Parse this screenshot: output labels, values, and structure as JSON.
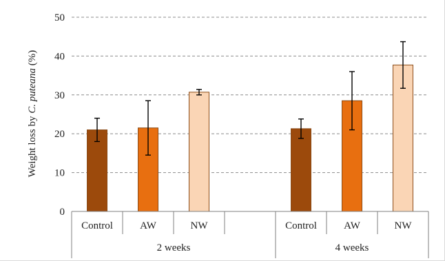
{
  "chart_data": {
    "type": "bar",
    "groups": [
      "2 weeks",
      "4 weeks"
    ],
    "categories": [
      "Control",
      "AW",
      "NW"
    ],
    "series": [
      {
        "group": "2 weeks",
        "category": "Control",
        "value": 21.0,
        "error": 3.0,
        "color": "#9c4a0c"
      },
      {
        "group": "2 weeks",
        "category": "AW",
        "value": 21.5,
        "error": 7.0,
        "color": "#e86f10"
      },
      {
        "group": "2 weeks",
        "category": "NW",
        "value": 30.7,
        "error": 0.7,
        "color": "#fad5b5"
      },
      {
        "group": "4 weeks",
        "category": "Control",
        "value": 21.3,
        "error": 2.5,
        "color": "#9c4a0c"
      },
      {
        "group": "4 weeks",
        "category": "AW",
        "value": 28.5,
        "error": 7.5,
        "color": "#e86f10"
      },
      {
        "group": "4 weeks",
        "category": "NW",
        "value": 37.7,
        "error": 6.0,
        "color": "#fad5b5"
      }
    ],
    "ylabel_prefix": "Weight loss by ",
    "ylabel_species": "C. puteana",
    "ylabel_suffix": " (%)",
    "ylim": [
      0,
      50
    ],
    "yticks": [
      0,
      10,
      20,
      30,
      40,
      50
    ],
    "grid": true,
    "bar_outline": "#8a4a16"
  }
}
